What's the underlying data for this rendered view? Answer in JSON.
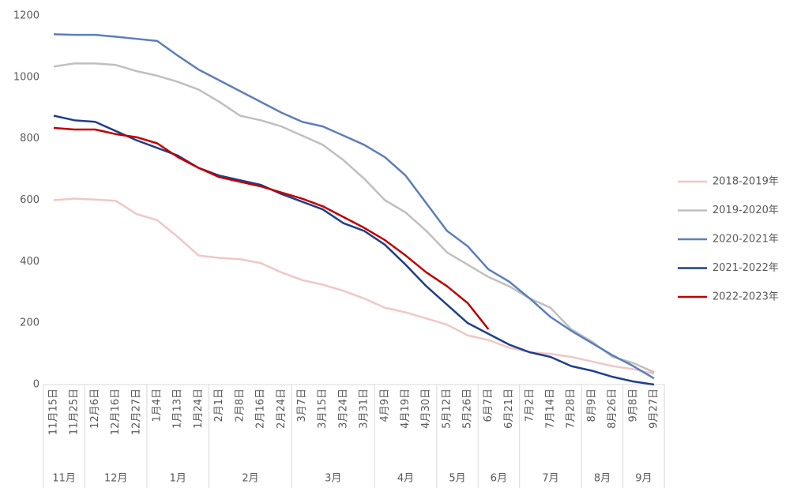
{
  "chart_data": {
    "type": "line",
    "categories": [
      "11月15日",
      "11月25日",
      "12月6日",
      "12月16日",
      "12月27日",
      "1月4日",
      "1月13日",
      "1月24日",
      "2月1日",
      "2月8日",
      "2月16日",
      "2月24日",
      "3月7日",
      "3月15日",
      "3月24日",
      "3月31日",
      "4月9日",
      "4月19日",
      "4月30日",
      "5月12日",
      "5月26日",
      "6月7日",
      "6月21日",
      "7月2日",
      "7月14日",
      "7月28日",
      "8月9日",
      "8月26日",
      "9月8日",
      "9月27日"
    ],
    "x_groups": [
      {
        "label": "11月",
        "count": 2
      },
      {
        "label": "12月",
        "count": 3
      },
      {
        "label": "1月",
        "count": 3
      },
      {
        "label": "2月",
        "count": 4
      },
      {
        "label": "3月",
        "count": 4
      },
      {
        "label": "4月",
        "count": 3
      },
      {
        "label": "5月",
        "count": 2
      },
      {
        "label": "6月",
        "count": 2
      },
      {
        "label": "7月",
        "count": 3
      },
      {
        "label": "8月",
        "count": 2
      },
      {
        "label": "9月",
        "count": 2
      }
    ],
    "series": [
      {
        "name": "2018-2019年",
        "color": "#f2c6c6",
        "values": [
          600,
          605,
          602,
          598,
          555,
          535,
          480,
          420,
          412,
          408,
          395,
          365,
          340,
          325,
          305,
          280,
          250,
          235,
          215,
          195,
          160,
          145,
          120,
          105,
          100,
          90,
          75,
          60,
          50,
          35
        ]
      },
      {
        "name": "2019-2020年",
        "color": "#bfbfbf",
        "values": [
          1035,
          1045,
          1045,
          1040,
          1020,
          1005,
          985,
          960,
          920,
          875,
          860,
          840,
          810,
          780,
          730,
          670,
          600,
          560,
          500,
          430,
          390,
          350,
          320,
          280,
          250,
          180,
          140,
          90,
          70,
          40
        ]
      },
      {
        "name": "2020-2021年",
        "color": "#5b7ebd",
        "values": [
          1140,
          1138,
          1138,
          1132,
          1125,
          1118,
          1070,
          1025,
          990,
          955,
          920,
          885,
          855,
          840,
          810,
          780,
          740,
          680,
          590,
          500,
          450,
          375,
          335,
          280,
          220,
          175,
          135,
          95,
          60,
          20
        ]
      },
      {
        "name": "2021-2022年",
        "color": "#1f3f8c",
        "values": [
          875,
          860,
          855,
          825,
          795,
          770,
          745,
          705,
          680,
          665,
          650,
          620,
          595,
          570,
          525,
          500,
          455,
          390,
          320,
          260,
          200,
          165,
          130,
          105,
          90,
          60,
          45,
          25,
          10,
          0
        ]
      },
      {
        "name": "2022-2023年",
        "color": "#c00000",
        "values": [
          835,
          830,
          830,
          815,
          805,
          785,
          740,
          705,
          675,
          660,
          645,
          625,
          605,
          580,
          545,
          510,
          470,
          420,
          365,
          320,
          265,
          180,
          null,
          null,
          null,
          null,
          null,
          null,
          null,
          null
        ]
      }
    ],
    "ylim": [
      0,
      1200
    ],
    "yticks": [
      0,
      200,
      400,
      600,
      800,
      1000,
      1200
    ],
    "legend": "right"
  }
}
